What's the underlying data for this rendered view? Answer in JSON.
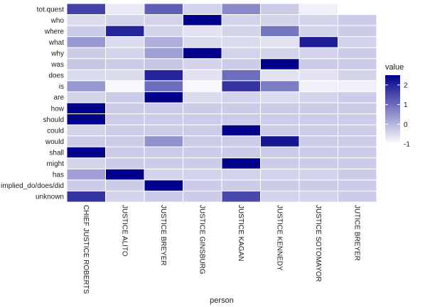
{
  "chart_data": {
    "type": "heatmap",
    "xlabel": "person",
    "ylabel": "",
    "x_categories": [
      "CHIEF JUSTICE ROBERTS",
      "JUSTICE ALITO",
      "JUSTICE BREYER",
      "JUSTICE GINSBURG",
      "JUSTICE KAGAN",
      "JUSTICE KENNEDY",
      "JUSTICE SOTOMAYOR",
      "JUTICE BREYER"
    ],
    "y_categories": [
      "tot.quest",
      "who",
      "where",
      "what",
      "why",
      "was",
      "does",
      "is",
      "are",
      "how",
      "should",
      "could",
      "would",
      "shall",
      "might",
      "has",
      "implied_do/does/did",
      "unknown"
    ],
    "values": [
      [
        1.6,
        -0.7,
        1.2,
        -0.4,
        0.6,
        -0.3,
        -0.8,
        null
      ],
      [
        -0.5,
        -0.4,
        -0.4,
        2.5,
        -0.4,
        -0.4,
        -0.4,
        -0.3
      ],
      [
        -0.3,
        2.0,
        -0.4,
        -0.6,
        -0.4,
        0.9,
        -0.4,
        -0.3
      ],
      [
        0.4,
        -0.5,
        0.1,
        -0.5,
        -0.5,
        -0.6,
        2.1,
        -0.4
      ],
      [
        -0.3,
        -0.4,
        0.3,
        2.5,
        -0.4,
        -0.4,
        -0.4,
        -0.3
      ],
      [
        -0.2,
        -0.3,
        -0.2,
        -0.4,
        -0.3,
        2.5,
        -0.3,
        -0.3
      ],
      [
        -0.5,
        -0.5,
        2.0,
        -0.6,
        1.0,
        -0.6,
        -0.6,
        -0.4
      ],
      [
        0.4,
        -0.9,
        1.0,
        -0.9,
        1.8,
        0.8,
        -0.8,
        -0.8
      ],
      [
        -0.4,
        -0.3,
        2.5,
        -0.5,
        -0.4,
        -0.5,
        -0.4,
        -0.3
      ],
      [
        2.5,
        -0.3,
        -0.3,
        -0.3,
        -0.3,
        -0.3,
        -0.3,
        -0.3
      ],
      [
        2.5,
        -0.3,
        -0.3,
        -0.3,
        -0.3,
        -0.3,
        -0.3,
        -0.3
      ],
      [
        -0.4,
        -0.3,
        -0.3,
        -0.3,
        2.5,
        -0.3,
        -0.3,
        -0.3
      ],
      [
        -0.3,
        -0.3,
        0.5,
        -0.3,
        -0.3,
        2.2,
        -0.3,
        -0.3
      ],
      [
        2.5,
        -0.3,
        -0.3,
        -0.3,
        -0.3,
        -0.3,
        -0.3,
        -0.3
      ],
      [
        -0.4,
        -0.3,
        -0.3,
        -0.3,
        2.5,
        -0.3,
        -0.3,
        -0.3
      ],
      [
        0.3,
        2.5,
        -0.4,
        -0.4,
        -0.4,
        -0.4,
        -0.4,
        -0.3
      ],
      [
        -0.3,
        -0.3,
        2.5,
        -0.3,
        -0.3,
        -0.3,
        -0.3,
        -0.3
      ],
      [
        1.8,
        -0.4,
        -0.3,
        -0.3,
        1.5,
        -0.4,
        -0.4,
        -0.3
      ]
    ],
    "value_range": [
      -1,
      2.5
    ],
    "color_low": "#ffffff",
    "color_high": "#00008b",
    "grid": false,
    "legend": {
      "title": "value",
      "ticks": [
        2,
        1,
        0,
        -1
      ],
      "placement": "right"
    }
  }
}
